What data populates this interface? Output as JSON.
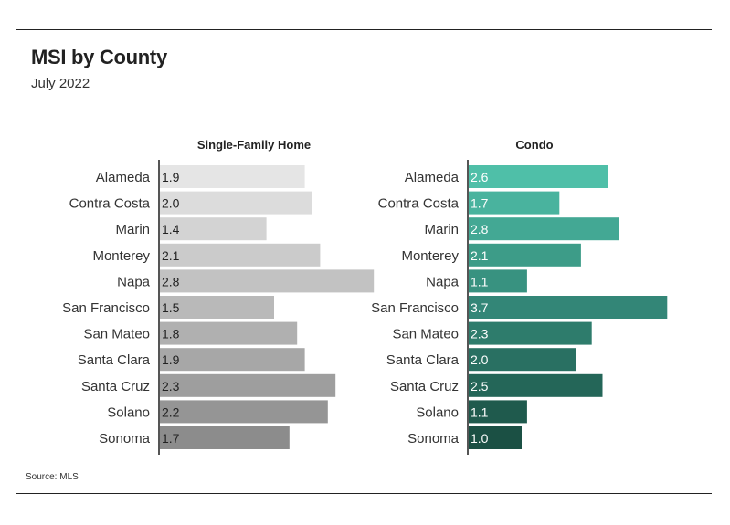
{
  "header": {
    "title": "MSI by County",
    "subtitle": "July 2022"
  },
  "footer": {
    "source": "Source: MLS"
  },
  "chart_data": [
    {
      "type": "bar",
      "orientation": "horizontal",
      "title": "Single-Family Home",
      "categories": [
        "Alameda",
        "Contra Costa",
        "Marin",
        "Monterey",
        "Napa",
        "San Francisco",
        "San Mateo",
        "Santa Clara",
        "Santa Cruz",
        "Solano",
        "Sonoma"
      ],
      "values": [
        1.9,
        2.0,
        1.4,
        2.1,
        2.8,
        1.5,
        1.8,
        1.9,
        2.3,
        2.2,
        1.7
      ],
      "value_labels": [
        "1.9",
        "2.0",
        "1.4",
        "2.1",
        "2.8",
        "1.5",
        "1.8",
        "1.9",
        "2.3",
        "2.2",
        "1.7"
      ],
      "colors": [
        "#e5e5e5",
        "#dcdcdc",
        "#d3d3d3",
        "#cbcbcb",
        "#c2c2c2",
        "#b9b9b9",
        "#b0b0b0",
        "#a7a7a7",
        "#9e9e9e",
        "#959595",
        "#8c8c8c"
      ],
      "xlim": [
        0,
        2.8
      ],
      "grid": false,
      "legend": "none"
    },
    {
      "type": "bar",
      "orientation": "horizontal",
      "title": "Condo",
      "categories": [
        "Alameda",
        "Contra Costa",
        "Marin",
        "Monterey",
        "Napa",
        "San Francisco",
        "San Mateo",
        "Santa Clara",
        "Santa Cruz",
        "Solano",
        "Sonoma"
      ],
      "values": [
        2.6,
        1.7,
        2.8,
        2.1,
        1.1,
        3.7,
        2.3,
        2.0,
        2.5,
        1.1,
        1.0
      ],
      "value_labels": [
        "2.6",
        "1.7",
        "2.8",
        "2.1",
        "1.1",
        "3.7",
        "2.3",
        "2.0",
        "2.5",
        "1.1",
        "1.0"
      ],
      "colors": [
        "#4fbfa8",
        "#49b39e",
        "#43a894",
        "#3d9c88",
        "#389280",
        "#338677",
        "#2e7c6c",
        "#297062",
        "#246658",
        "#1f5a4d",
        "#1b5044"
      ],
      "xlim": [
        0,
        3.7
      ],
      "grid": false,
      "legend": "none"
    }
  ]
}
